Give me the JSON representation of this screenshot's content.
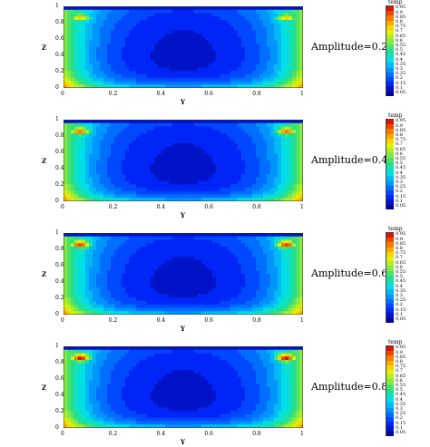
{
  "chart_data": [
    {
      "type": "heatmap",
      "annotation": "Amplitude=0.2",
      "xlabel": "Y",
      "ylabel": "Z",
      "xlim": [
        0,
        1
      ],
      "ylim": [
        0,
        1
      ],
      "xticks": [
        "0",
        "0.2",
        "0.4",
        "0.6",
        "0.8",
        "1"
      ],
      "yticks": [
        "0",
        "0.2",
        "0.4",
        "0.6",
        "0.8",
        "1"
      ],
      "legend_title": "temp",
      "legend_levels": [
        "0.95",
        "0.9",
        "0.85",
        "0.8",
        "0.75",
        "0.7",
        "0.65",
        "0.6",
        "0.55",
        "0.5",
        "0.45",
        "0.4",
        "0.35",
        "0.3",
        "0.25",
        "0.2",
        "0.15",
        "0.1",
        "0.05"
      ],
      "legend_placement": "right",
      "hot_spot_level": 0.75
    },
    {
      "type": "heatmap",
      "annotation": "Amplitude=0.4",
      "xlabel": "Y",
      "ylabel": "Z",
      "xlim": [
        0,
        1
      ],
      "ylim": [
        0,
        1
      ],
      "xticks": [
        "0",
        "0.2",
        "0.4",
        "0.6",
        "0.8",
        "1"
      ],
      "yticks": [
        "0",
        "0.2",
        "0.4",
        "0.6",
        "0.8",
        "1"
      ],
      "legend_title": "temp",
      "legend_levels": [
        "0.95",
        "0.9",
        "0.85",
        "0.8",
        "0.75",
        "0.7",
        "0.65",
        "0.6",
        "0.55",
        "0.5",
        "0.45",
        "0.4",
        "0.35",
        "0.3",
        "0.25",
        "0.2",
        "0.15",
        "0.1",
        "0.05"
      ],
      "legend_placement": "right",
      "hot_spot_level": 0.85
    },
    {
      "type": "heatmap",
      "annotation": "Amplitude=0.6",
      "xlabel": "Y",
      "ylabel": "Z",
      "xlim": [
        0,
        1
      ],
      "ylim": [
        0,
        1
      ],
      "xticks": [
        "0",
        "0.2",
        "0.4",
        "0.6",
        "0.8",
        "1"
      ],
      "yticks": [
        "0",
        "0.2",
        "0.4",
        "0.6",
        "0.8",
        "1"
      ],
      "legend_title": "temp",
      "legend_levels": [
        "0.95",
        "0.9",
        "0.85",
        "0.8",
        "0.75",
        "0.7",
        "0.65",
        "0.6",
        "0.55",
        "0.5",
        "0.45",
        "0.4",
        "0.35",
        "0.3",
        "0.25",
        "0.2",
        "0.15",
        "0.1",
        "0.05"
      ],
      "legend_placement": "right",
      "hot_spot_level": 0.9
    },
    {
      "type": "heatmap",
      "annotation": "Amplitude=0.8",
      "xlabel": "Y",
      "ylabel": "Z",
      "xlim": [
        0,
        1
      ],
      "ylim": [
        0,
        1
      ],
      "xticks": [
        "0",
        "0.2",
        "0.4",
        "0.6",
        "0.8",
        "1"
      ],
      "yticks": [
        "0",
        "0.2",
        "0.4",
        "0.6",
        "0.8",
        "1"
      ],
      "legend_title": "temp",
      "legend_levels": [
        "0.95",
        "0.9",
        "0.85",
        "0.8",
        "0.75",
        "0.7",
        "0.65",
        "0.6",
        "0.55",
        "0.5",
        "0.45",
        "0.4",
        "0.35",
        "0.3",
        "0.25",
        "0.2",
        "0.15",
        "0.1",
        "0.05"
      ],
      "legend_placement": "right",
      "hot_spot_level": 0.95
    }
  ]
}
